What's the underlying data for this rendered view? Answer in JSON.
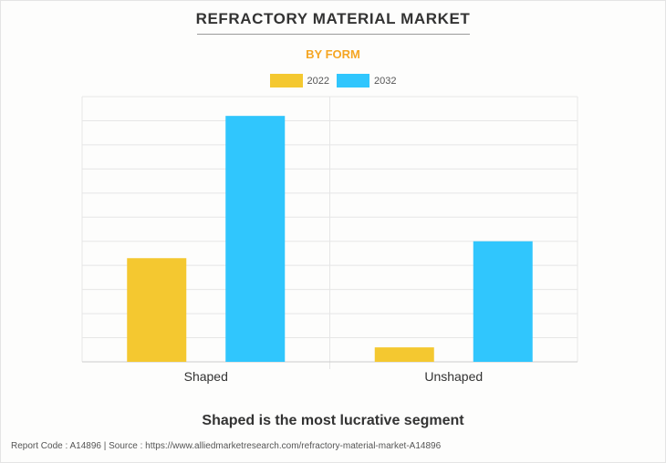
{
  "title": "REFRACTORY MATERIAL MARKET",
  "subtitle": "BY FORM",
  "caption": "Shaped is the most lucrative segment",
  "footer": "Report Code : A14896  |  Source : https://www.alliedmarketresearch.com/refractory-material-market-A14896",
  "colors": {
    "subtitle": "#f5a623",
    "series_2022": "#f4c830",
    "series_2032": "#30c6fd"
  },
  "chart_data": {
    "type": "bar",
    "title": "REFRACTORY MATERIAL MARKET",
    "subtitle": "BY FORM",
    "categories": [
      "Shaped",
      "Unshaped"
    ],
    "series": [
      {
        "name": "2022",
        "values": [
          4.3,
          0.6
        ]
      },
      {
        "name": "2032",
        "values": [
          10.2,
          5.0
        ]
      }
    ],
    "ylim": [
      0,
      11
    ],
    "grid": true,
    "legend": "top-center",
    "xlabel": "",
    "ylabel": ""
  }
}
